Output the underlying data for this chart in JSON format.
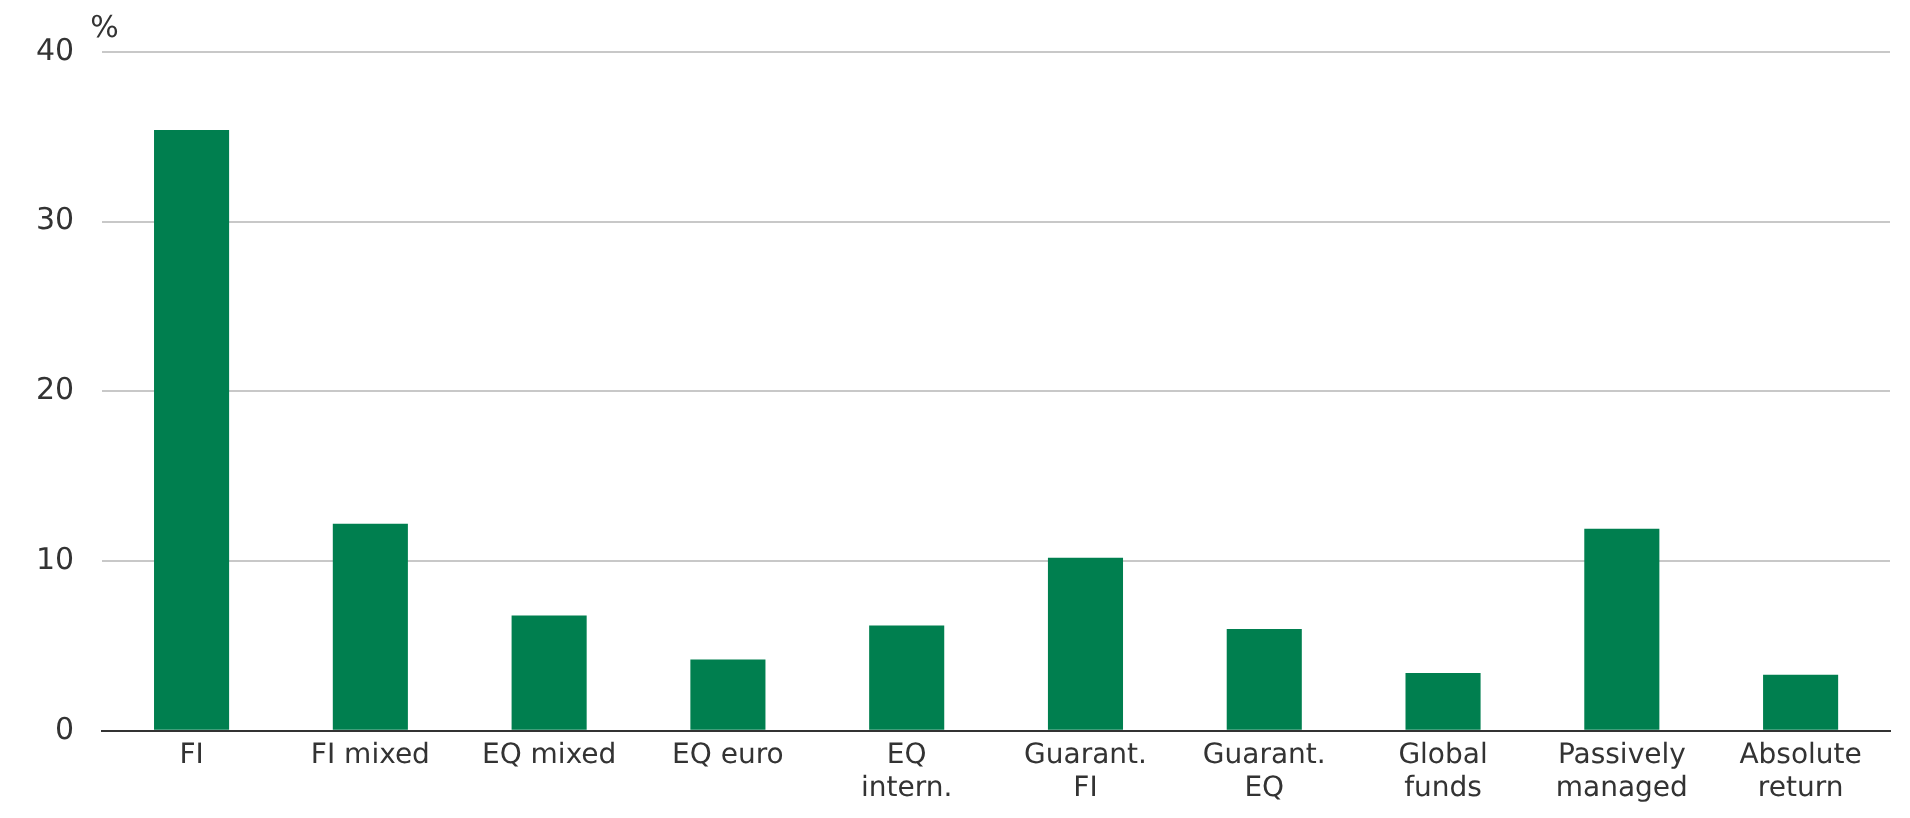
{
  "chart_data": {
    "type": "bar",
    "ylabel": "%",
    "categories": [
      "FI",
      "FI mixed",
      "EQ mixed",
      "EQ euro",
      "EQ intern.",
      "Guarant. FI",
      "Guarant. EQ",
      "Global funds",
      "Passively managed",
      "Absolute return"
    ],
    "values": [
      35.4,
      12.2,
      6.8,
      4.2,
      6.2,
      10.2,
      6.0,
      3.4,
      11.9,
      3.3
    ],
    "color": "#007f4f",
    "ylim": [
      0,
      40
    ],
    "yticks": [
      0,
      10,
      20,
      30,
      40
    ],
    "grid": "y"
  }
}
